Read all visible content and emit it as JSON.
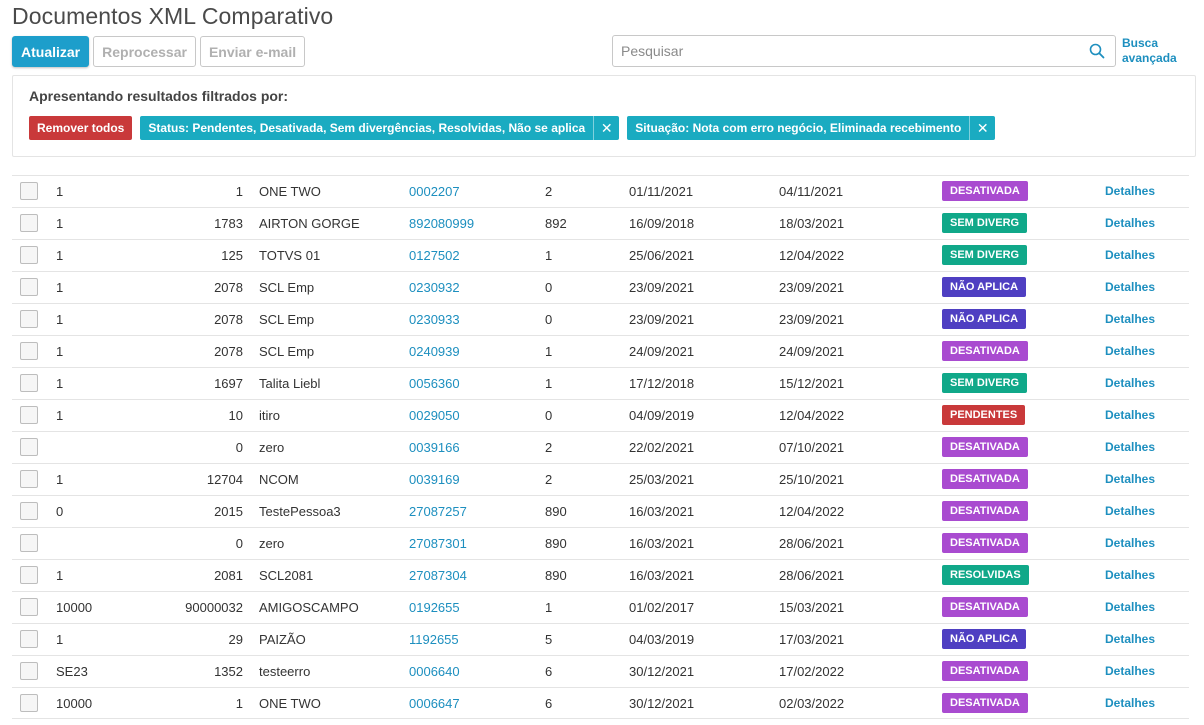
{
  "page": {
    "title": "Documentos XML Comparativo"
  },
  "toolbar": {
    "refresh_label": "Atualizar",
    "reprocess_label": "Reprocessar",
    "send_email_label": "Enviar e-mail"
  },
  "search": {
    "placeholder": "Pesquisar",
    "value": "",
    "advanced_label": "Busca avançada"
  },
  "filters": {
    "heading": "Apresentando resultados filtrados por:",
    "remove_all_label": "Remover todos",
    "chips": [
      {
        "label": "Status: Pendentes, Desativada, Sem divergências, Resolvidas, Não se aplica",
        "close": "✕"
      },
      {
        "label": "Situação: Nota com erro negócio, Eliminada recebimento",
        "close": "✕"
      }
    ]
  },
  "colors": {
    "primary": "#1d9ecb",
    "chip": "#1aabc1",
    "remove": "#c9393a",
    "desativada": "#a94bd0",
    "sem_diverg": "#10a889",
    "nao_aplica": "#4f3fc2",
    "pendentes": "#c9393a",
    "resolvidas": "#10a889"
  },
  "table": {
    "details_label": "Detalhes",
    "rows": [
      {
        "c1": "1",
        "c2": "1",
        "name": "ONE TWO",
        "doc": "0002207",
        "c5": "2",
        "date1": "01/11/2021",
        "date2": "04/11/2021",
        "status": "DESATIVADA",
        "status_key": "DESATIVADA"
      },
      {
        "c1": "1",
        "c2": "1783",
        "name": "AIRTON GORGE",
        "doc": "892080999",
        "c5": "892",
        "date1": "16/09/2018",
        "date2": "18/03/2021",
        "status": "SEM DIVERG",
        "status_key": "SEMDIVERG"
      },
      {
        "c1": "1",
        "c2": "125",
        "name": "TOTVS 01",
        "doc": "0127502",
        "c5": "1",
        "date1": "25/06/2021",
        "date2": "12/04/2022",
        "status": "SEM DIVERG",
        "status_key": "SEMDIVERG"
      },
      {
        "c1": "1",
        "c2": "2078",
        "name": "SCL Emp",
        "doc": "0230932",
        "c5": "0",
        "date1": "23/09/2021",
        "date2": "23/09/2021",
        "status": "NÃO APLICA",
        "status_key": "NAOAPLICA"
      },
      {
        "c1": "1",
        "c2": "2078",
        "name": "SCL Emp",
        "doc": "0230933",
        "c5": "0",
        "date1": "23/09/2021",
        "date2": "23/09/2021",
        "status": "NÃO APLICA",
        "status_key": "NAOAPLICA"
      },
      {
        "c1": "1",
        "c2": "2078",
        "name": "SCL Emp",
        "doc": "0240939",
        "c5": "1",
        "date1": "24/09/2021",
        "date2": "24/09/2021",
        "status": "DESATIVADA",
        "status_key": "DESATIVADA"
      },
      {
        "c1": "1",
        "c2": "1697",
        "name": "Talita Liebl",
        "doc": "0056360",
        "c5": "1",
        "date1": "17/12/2018",
        "date2": "15/12/2021",
        "status": "SEM DIVERG",
        "status_key": "SEMDIVERG"
      },
      {
        "c1": "1",
        "c2": "10",
        "name": "itiro",
        "doc": "0029050",
        "c5": "0",
        "date1": "04/09/2019",
        "date2": "12/04/2022",
        "status": "PENDENTES",
        "status_key": "PENDENTES"
      },
      {
        "c1": "",
        "c2": "0",
        "name": "zero",
        "doc": "0039166",
        "c5": "2",
        "date1": "22/02/2021",
        "date2": "07/10/2021",
        "status": "DESATIVADA",
        "status_key": "DESATIVADA"
      },
      {
        "c1": "1",
        "c2": "12704",
        "name": "NCOM",
        "doc": "0039169",
        "c5": "2",
        "date1": "25/03/2021",
        "date2": "25/10/2021",
        "status": "DESATIVADA",
        "status_key": "DESATIVADA"
      },
      {
        "c1": "0",
        "c2": "2015",
        "name": "TestePessoa3",
        "doc": "27087257",
        "c5": "890",
        "date1": "16/03/2021",
        "date2": "12/04/2022",
        "status": "DESATIVADA",
        "status_key": "DESATIVADA"
      },
      {
        "c1": "",
        "c2": "0",
        "name": "zero",
        "doc": "27087301",
        "c5": "890",
        "date1": "16/03/2021",
        "date2": "28/06/2021",
        "status": "DESATIVADA",
        "status_key": "DESATIVADA"
      },
      {
        "c1": "1",
        "c2": "2081",
        "name": "SCL2081",
        "doc": "27087304",
        "c5": "890",
        "date1": "16/03/2021",
        "date2": "28/06/2021",
        "status": "RESOLVIDAS",
        "status_key": "RESOLVIDAS"
      },
      {
        "c1": "10000",
        "c2": "90000032",
        "name": "AMIGOSCAMPO",
        "doc": "0192655",
        "c5": "1",
        "date1": "01/02/2017",
        "date2": "15/03/2021",
        "status": "DESATIVADA",
        "status_key": "DESATIVADA"
      },
      {
        "c1": "1",
        "c2": "29",
        "name": "PAIZÃO",
        "doc": "1192655",
        "c5": "5",
        "date1": "04/03/2019",
        "date2": "17/03/2021",
        "status": "NÃO APLICA",
        "status_key": "NAOAPLICA"
      },
      {
        "c1": "SE23",
        "c2": "1352",
        "name": "testeerro",
        "doc": "0006640",
        "c5": "6",
        "date1": "30/12/2021",
        "date2": "17/02/2022",
        "status": "DESATIVADA",
        "status_key": "DESATIVADA"
      },
      {
        "c1": "10000",
        "c2": "1",
        "name": "ONE TWO",
        "doc": "0006647",
        "c5": "6",
        "date1": "30/12/2021",
        "date2": "02/03/2022",
        "status": "DESATIVADA",
        "status_key": "DESATIVADA"
      }
    ]
  }
}
